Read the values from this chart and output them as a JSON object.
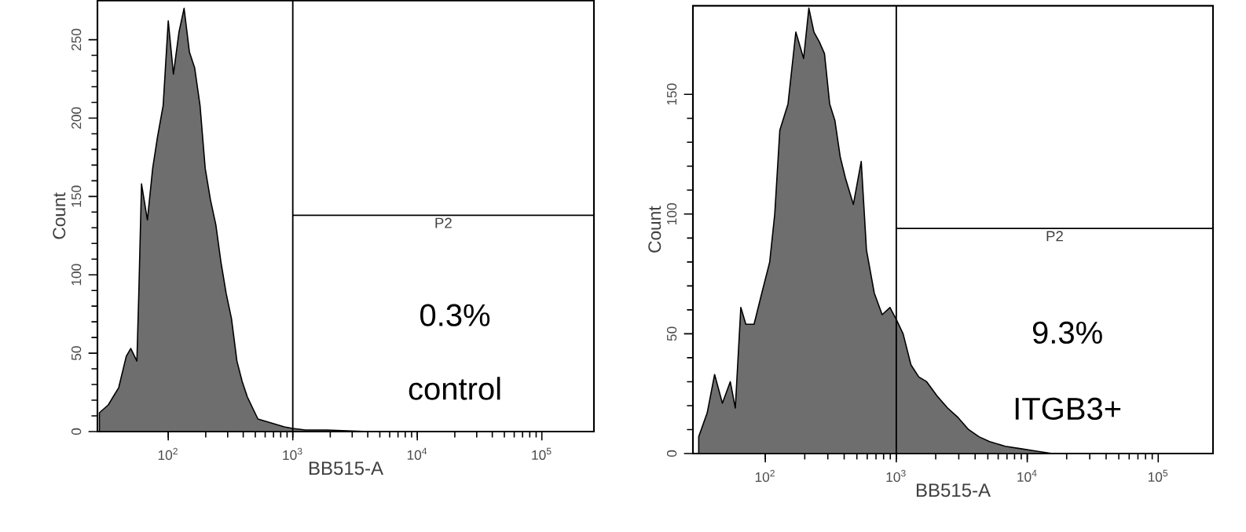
{
  "chart_data": [
    {
      "type": "area",
      "xlabel": "BB515-A",
      "ylabel": "Count",
      "log": "x",
      "color": "#6e6e6e",
      "x": [
        28,
        33,
        36,
        40,
        46,
        50,
        56,
        58,
        61,
        68,
        75,
        82,
        91,
        100,
        110,
        122,
        134,
        148,
        163,
        180,
        198,
        218,
        241,
        265,
        292,
        322,
        356,
        392,
        432,
        476,
        525,
        579,
        704,
        855,
        1000,
        1265,
        1866,
        4074,
        260000
      ],
      "values": [
        12,
        17,
        22,
        28,
        48,
        53,
        45,
        88,
        158,
        135,
        168,
        188,
        208,
        262,
        228,
        255,
        270,
        242,
        232,
        208,
        168,
        148,
        132,
        108,
        88,
        72,
        45,
        32,
        22,
        15,
        8,
        7,
        5,
        3,
        2,
        1,
        1,
        0,
        0
      ],
      "xlim": [
        27,
        262000
      ],
      "ylim": [
        0,
        275
      ],
      "xticks": [
        {
          "value": 100,
          "label": "10$^{2}$"
        },
        {
          "value": 1000,
          "label": "10$^{3}$"
        },
        {
          "value": 10000,
          "label": "10$^{4}$"
        },
        {
          "value": 100000,
          "label": "10$^{5}$"
        }
      ],
      "yticks": [
        0,
        50,
        100,
        150,
        200,
        250
      ],
      "ref_lines": [
        {
          "axis": "x",
          "value": 1000
        },
        {
          "axis": "y",
          "value": 138,
          "label": "P2"
        }
      ],
      "annotations": [
        "0.3%",
        "control"
      ]
    },
    {
      "type": "area",
      "xlabel": "BB515-A",
      "ylabel": "Count",
      "log": "x",
      "color": "#6e6e6e",
      "x": [
        31,
        36,
        41,
        47,
        54,
        59,
        65,
        71,
        82,
        94,
        108,
        118,
        129,
        149,
        171,
        196,
        215,
        235,
        258,
        283,
        310,
        340,
        373,
        409,
        470,
        540,
        592,
        679,
        780,
        895,
        1000,
        1127,
        1294,
        1486,
        1706,
        2051,
        2466,
        2965,
        3565,
        4285,
        5152,
        6792,
        8954,
        11800,
        15560,
        260000
      ],
      "values": [
        7,
        17,
        33,
        21,
        30,
        19,
        61,
        54,
        54,
        67,
        80,
        100,
        135,
        146,
        176,
        165,
        186,
        176,
        172,
        167,
        146,
        139,
        124,
        115,
        104,
        122,
        85,
        67,
        58,
        61,
        56,
        50,
        37,
        32,
        30,
        24,
        19,
        15,
        10,
        7,
        5,
        3,
        2,
        1,
        0,
        0
      ],
      "xlim": [
        28,
        262000
      ],
      "ylim": [
        0,
        187
      ],
      "xticks": [
        {
          "value": 100,
          "label": "10$^{2}$"
        },
        {
          "value": 1000,
          "label": "10$^{3}$"
        },
        {
          "value": 10000,
          "label": "10$^{4}$"
        },
        {
          "value": 100000,
          "label": "10$^{5}$"
        }
      ],
      "yticks": [
        0,
        50,
        100,
        150
      ],
      "ref_lines": [
        {
          "axis": "x",
          "value": 1000
        },
        {
          "axis": "y",
          "value": 94,
          "label": "P2"
        }
      ],
      "annotations": [
        "9.3%",
        "ITGB3+"
      ]
    }
  ]
}
